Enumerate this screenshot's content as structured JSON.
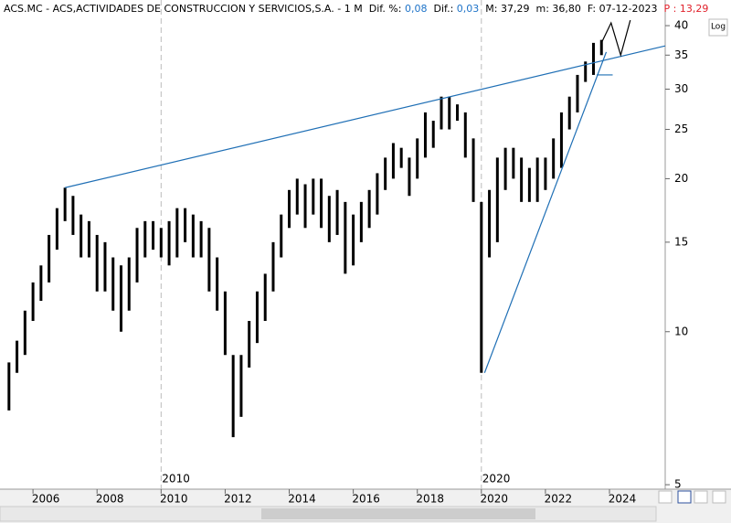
{
  "header": {
    "symbol": "ACS.MC - ACS,ACTIVIDADES DE CONSTRUCCION Y SERVICIOS,S.A. -  1 M",
    "dif_pct_label": "Dif. %:",
    "dif_pct": "0,08",
    "dif_label": "Dif.:",
    "dif": "0,03",
    "max_label": "M:",
    "max": "37,29",
    "min_label": "m:",
    "min": "36,80",
    "date_label": "F:",
    "date": "07-12-2023",
    "p_label": "P :",
    "p": "13,29"
  },
  "log_button": "Log",
  "chart_data": {
    "type": "range_bar",
    "color": "#000000",
    "log_scale": true,
    "x": [
      2005.25,
      2005.5,
      2005.75,
      2006.0,
      2006.25,
      2006.5,
      2006.75,
      2007.0,
      2007.25,
      2007.5,
      2007.75,
      2008.0,
      2008.25,
      2008.5,
      2008.75,
      2009.0,
      2009.25,
      2009.5,
      2009.75,
      2010.0,
      2010.25,
      2010.5,
      2010.75,
      2011.0,
      2011.25,
      2011.5,
      2011.75,
      2012.0,
      2012.25,
      2012.5,
      2012.75,
      2013.0,
      2013.25,
      2013.5,
      2013.75,
      2014.0,
      2014.25,
      2014.5,
      2014.75,
      2015.0,
      2015.25,
      2015.5,
      2015.75,
      2016.0,
      2016.25,
      2016.5,
      2016.75,
      2017.0,
      2017.25,
      2017.5,
      2017.75,
      2018.0,
      2018.25,
      2018.5,
      2018.75,
      2019.0,
      2019.25,
      2019.5,
      2019.75,
      2020.0,
      2020.25,
      2020.5,
      2020.75,
      2021.0,
      2021.25,
      2021.5,
      2021.75,
      2022.0,
      2022.25,
      2022.5,
      2022.75,
      2023.0,
      2023.25,
      2023.5,
      2023.75
    ],
    "low": [
      7.0,
      8.3,
      9.0,
      10.5,
      11.5,
      12.5,
      14.5,
      16.5,
      15.5,
      14,
      14,
      12,
      12,
      11,
      10,
      11,
      12.5,
      14,
      14.5,
      14,
      13.5,
      14,
      15,
      14,
      14,
      12,
      11,
      9,
      6.2,
      6.8,
      8.5,
      9.5,
      10.5,
      12,
      14,
      16,
      17,
      16,
      17,
      16,
      15,
      15.5,
      13,
      13.5,
      15,
      16,
      17,
      19,
      20,
      21,
      18.5,
      20,
      22,
      23,
      25,
      25,
      26,
      22,
      18,
      8.3,
      14,
      15,
      19,
      20,
      18,
      18,
      18,
      19,
      20,
      21,
      25,
      27,
      31,
      32,
      35
    ],
    "high": [
      8.7,
      9.6,
      11,
      12.5,
      13.5,
      15.5,
      17.5,
      19.2,
      18.5,
      17,
      16.5,
      15.5,
      15,
      14,
      13.5,
      14,
      16,
      16.5,
      16.5,
      16,
      16.5,
      17.5,
      17.5,
      17,
      16.5,
      16,
      14,
      12,
      9,
      9,
      10.5,
      12,
      13,
      15,
      17,
      19,
      20,
      19.5,
      20,
      20,
      18.5,
      19,
      18,
      17,
      18,
      19,
      20.5,
      22,
      23.5,
      23,
      22,
      24,
      27,
      26,
      29,
      29,
      28,
      27,
      24,
      18,
      19,
      22,
      23,
      23,
      22,
      21,
      22,
      22,
      24,
      27,
      29,
      32,
      34,
      37,
      37.5
    ],
    "xlim": [
      2004.97,
      2025.74
    ],
    "ylim": [
      4.9,
      41.7
    ],
    "xticks": [
      2006,
      2008,
      2010,
      2012,
      2014,
      2016,
      2018,
      2020,
      2022,
      2024
    ],
    "yticks": [
      5,
      10,
      15,
      20,
      25,
      30,
      35,
      40
    ],
    "decade_lines": [
      2010,
      2020
    ],
    "trend_lines": [
      {
        "color": "#1f6fb5",
        "x": [
          2007.0,
          2025.74
        ],
        "y": [
          19.2,
          36.5
        ]
      },
      {
        "color": "#1f6fb5",
        "x": [
          2020.1,
          2023.9
        ],
        "y": [
          8.3,
          35.5
        ]
      },
      {
        "color": "#1f6fb5",
        "x": [
          2023.6,
          2024.1
        ],
        "y": [
          32,
          32
        ]
      },
      {
        "color": "#000000",
        "x": [
          2023.75,
          2024.05,
          2024.35,
          2024.65
        ],
        "y": [
          37,
          40.5,
          35,
          41
        ]
      }
    ]
  }
}
